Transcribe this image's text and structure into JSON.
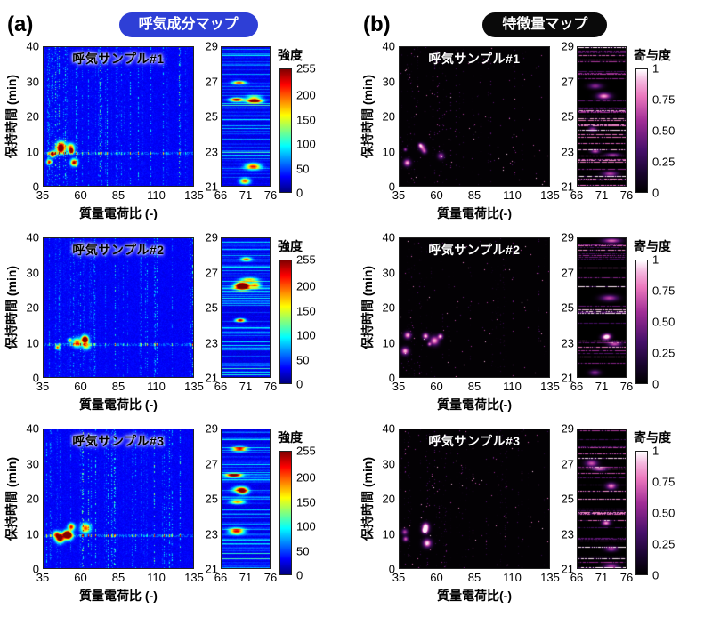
{
  "panels": [
    {
      "label": "(a)",
      "header": "呼気成分マップ",
      "header_bg": "#2e3fd6",
      "header_text_color": "#ffffff",
      "xlabel": "質量電荷比 (-)",
      "colorbar_title": "強度",
      "colorbar_ticks": [
        "255",
        "200",
        "150",
        "100",
        "50",
        "0"
      ],
      "colormap": "jet",
      "rows": [
        {
          "title": "呼気サンプル#1"
        },
        {
          "title": "呼気サンプル#2"
        },
        {
          "title": "呼気サンプル#3"
        }
      ]
    },
    {
      "label": "(b)",
      "header": "特徴量マップ",
      "header_bg": "#0a0a0a",
      "header_text_color": "#ffffff",
      "xlabel": "質量電荷比(-)",
      "colorbar_title": "寄与度",
      "colorbar_ticks": [
        "1",
        "0.75",
        "0.50",
        "0.25",
        "0"
      ],
      "colormap": "magma",
      "rows": [
        {
          "title": "呼気サンプル#1"
        },
        {
          "title": "呼気サンプル#2"
        },
        {
          "title": "呼気サンプル#3"
        }
      ]
    }
  ],
  "axes": {
    "main": {
      "ylabel": "保持時間 (min)",
      "yticks": [
        "40",
        "30",
        "20",
        "10",
        "0"
      ],
      "xticks": [
        "35",
        "60",
        "85",
        "110",
        "135"
      ]
    },
    "zoom": {
      "yticks": [
        "29",
        "27",
        "25",
        "23",
        "21"
      ],
      "xticks": [
        "66",
        "71",
        "76"
      ]
    }
  },
  "chart_data": [
    {
      "type": "heatmap",
      "panel": "(a)",
      "title": "呼気成分マップ",
      "samples": [
        "呼気サンプル#1",
        "呼気サンプル#2",
        "呼気サンプル#3"
      ],
      "main_axes": {
        "xlabel": "質量電荷比 (-)",
        "ylabel": "保持時間 (min)",
        "xlim": [
          35,
          135
        ],
        "ylim": [
          0,
          40
        ],
        "xticks": [
          35,
          60,
          85,
          110,
          135
        ],
        "yticks": [
          0,
          10,
          20,
          30,
          40
        ]
      },
      "zoom_axes": {
        "xlim": [
          66,
          76
        ],
        "ylim": [
          21,
          29
        ],
        "xticks": [
          66,
          71,
          76
        ],
        "yticks": [
          21,
          23,
          25,
          27,
          29
        ]
      },
      "colorbar": {
        "label": "強度",
        "range": [
          0,
          255
        ],
        "ticks": [
          0,
          50,
          100,
          150,
          200,
          255
        ],
        "colormap": "jet"
      },
      "appearance": "blue jet-colormap background with vertical chromatographic streaks; strongest yellow/red peaks near retention time 8-12 min at m/z 35-60; zoom panes show horizontal green/yellow/red bands between retention 21-29 min"
    },
    {
      "type": "heatmap",
      "panel": "(b)",
      "title": "特徴量マップ",
      "samples": [
        "呼気サンプル#1",
        "呼気サンプル#2",
        "呼気サンプル#3"
      ],
      "main_axes": {
        "xlabel": "質量電荷比(-)",
        "ylabel": "保持時間 (min)",
        "xlim": [
          35,
          135
        ],
        "ylim": [
          0,
          40
        ],
        "xticks": [
          35,
          60,
          85,
          110,
          135
        ],
        "yticks": [
          0,
          10,
          20,
          30,
          40
        ]
      },
      "zoom_axes": {
        "xlim": [
          66,
          76
        ],
        "ylim": [
          21,
          29
        ],
        "xticks": [
          66,
          71,
          76
        ],
        "yticks": [
          21,
          23,
          25,
          27,
          29
        ]
      },
      "colorbar": {
        "label": "寄与度",
        "range": [
          0,
          1
        ],
        "ticks": [
          0,
          0.25,
          0.5,
          0.75,
          1
        ],
        "colormap": "magma"
      },
      "appearance": "black background with sparse purple/magenta/white feature-importance spots; clusters near retention 5-12 min at low m/z; zoom panes show bright magenta/white horizontal streaks"
    }
  ]
}
